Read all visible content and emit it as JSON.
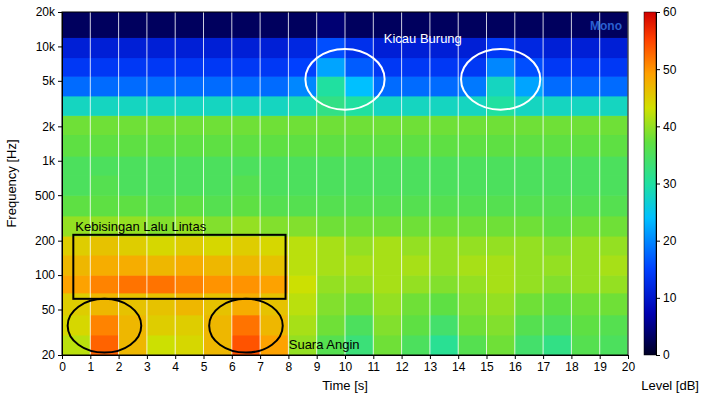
{
  "chart_data": {
    "type": "heatmap",
    "x_label": "Time [s]",
    "y_label": "Frequency [Hz]",
    "channel": "Mono",
    "log": "y",
    "grid": true,
    "xlim": [
      0,
      20
    ],
    "xticks": [
      0,
      1,
      2,
      3,
      4,
      5,
      6,
      7,
      8,
      9,
      10,
      11,
      12,
      13,
      14,
      15,
      16,
      17,
      18,
      19,
      20
    ],
    "ylim": [
      20,
      20000
    ],
    "yticks": [
      20,
      50,
      100,
      200,
      500,
      {
        "value": 1000,
        "label": "1k"
      },
      {
        "value": 2000,
        "label": "2k"
      },
      {
        "value": 5000,
        "label": "5k"
      },
      {
        "value": 10000,
        "label": "10k"
      },
      {
        "value": 20000,
        "label": "20k"
      }
    ],
    "x_bins": [
      0,
      1,
      2,
      3,
      4,
      5,
      6,
      7,
      8,
      9,
      10,
      11,
      12,
      13,
      14,
      15,
      16,
      17,
      18,
      19,
      20
    ],
    "y_bins": [
      20,
      30,
      45,
      70,
      100,
      150,
      220,
      330,
      500,
      750,
      1100,
      1700,
      2500,
      3700,
      5500,
      8000,
      12000,
      20000
    ],
    "z": [
      [
        42,
        53,
        47,
        43,
        44,
        47,
        54,
        49,
        40,
        36,
        33,
        38,
        35,
        31,
        36,
        38,
        34,
        32,
        36,
        35
      ],
      [
        44,
        51,
        47,
        45,
        45,
        47,
        52,
        47,
        41,
        38,
        35,
        39,
        37,
        34,
        38,
        39,
        36,
        35,
        37,
        36
      ],
      [
        45,
        47,
        46,
        46,
        47,
        46,
        48,
        46,
        42,
        39,
        38,
        40,
        38,
        37,
        39,
        40,
        38,
        37,
        38,
        38
      ],
      [
        49,
        51,
        52,
        52,
        51,
        50,
        50,
        49,
        43,
        40,
        40,
        41,
        40,
        39,
        40,
        41,
        40,
        39,
        40,
        40
      ],
      [
        47,
        48,
        48,
        47,
        48,
        47,
        47,
        46,
        42,
        41,
        41,
        41,
        41,
        40,
        41,
        41,
        40,
        40,
        40,
        41
      ],
      [
        45,
        46,
        45,
        44,
        45,
        44,
        45,
        44,
        42,
        41,
        40,
        41,
        40,
        40,
        40,
        40,
        40,
        39,
        40,
        40
      ],
      [
        40,
        40,
        40,
        39,
        40,
        39,
        40,
        39,
        39,
        38,
        38,
        38,
        38,
        38,
        38,
        38,
        38,
        37,
        38,
        38
      ],
      [
        37,
        37,
        37,
        36,
        37,
        36,
        37,
        36,
        36,
        36,
        36,
        36,
        36,
        36,
        36,
        36,
        36,
        36,
        36,
        36
      ],
      [
        35,
        36,
        35,
        35,
        35,
        35,
        36,
        35,
        35,
        35,
        35,
        35,
        35,
        35,
        35,
        35,
        35,
        35,
        35,
        35
      ],
      [
        35,
        35,
        35,
        35,
        35,
        35,
        35,
        35,
        35,
        35,
        35,
        35,
        35,
        35,
        35,
        35,
        35,
        35,
        35,
        35
      ],
      [
        37,
        37,
        37,
        37,
        37,
        37,
        37,
        37,
        37,
        37,
        37,
        37,
        37,
        37,
        37,
        37,
        37,
        37,
        37,
        37
      ],
      [
        38,
        38,
        38,
        38,
        38,
        38,
        38,
        38,
        38,
        38,
        38,
        38,
        38,
        38,
        38,
        38,
        38,
        38,
        38,
        38
      ],
      [
        28,
        28,
        28,
        28,
        28,
        28,
        28,
        28,
        29,
        32,
        30,
        28,
        28,
        28,
        28,
        30,
        28,
        28,
        28,
        28
      ],
      [
        18,
        18,
        18,
        18,
        18,
        18,
        18,
        18,
        20,
        30,
        24,
        18,
        18,
        18,
        19,
        28,
        22,
        18,
        18,
        18
      ],
      [
        14,
        14,
        14,
        14,
        14,
        14,
        14,
        14,
        15,
        22,
        17,
        14,
        14,
        14,
        14,
        20,
        16,
        14,
        14,
        14
      ],
      [
        11,
        11,
        11,
        11,
        11,
        11,
        11,
        11,
        12,
        16,
        13,
        11,
        11,
        11,
        11,
        14,
        12,
        11,
        11,
        11
      ],
      [
        3,
        3,
        3,
        3,
        3,
        3,
        3,
        3,
        3,
        4,
        3,
        3,
        3,
        3,
        3,
        3,
        3,
        3,
        3,
        3
      ]
    ],
    "zlim": [
      0,
      60
    ],
    "zticks": [
      0,
      10,
      20,
      30,
      40,
      50,
      60
    ],
    "z_label": "Level [dB]",
    "annotations": [
      {
        "text": "Kicau Burung",
        "color": "#ffffff",
        "regions": [
          {
            "x": [
              8.6,
              11.4
            ],
            "y": [
              2800,
              9500
            ]
          },
          {
            "x": [
              14.1,
              16.9
            ],
            "y": [
              2800,
              9500
            ]
          }
        ]
      },
      {
        "text": "Kebisingan Lalu Lintas",
        "color": "#000000",
        "regions": [
          {
            "x": [
              0.4,
              7.9
            ],
            "y": [
              62,
              225
            ]
          }
        ]
      },
      {
        "text": "Suara Angin",
        "color": "#000000",
        "regions": [
          {
            "x": [
              0.2,
              2.8
            ],
            "y": [
              21,
              62
            ]
          },
          {
            "x": [
              5.2,
              7.8
            ],
            "y": [
              21,
              62
            ]
          }
        ]
      }
    ]
  }
}
